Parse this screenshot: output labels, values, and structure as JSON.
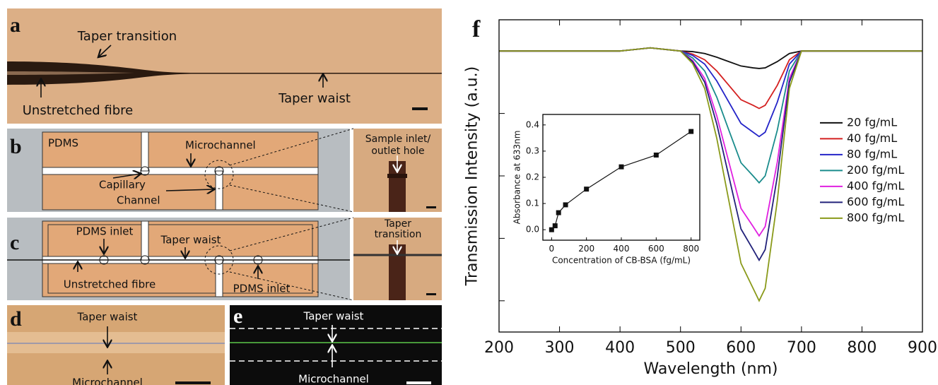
{
  "panels": [
    {
      "letter": "a",
      "labels": [
        "Taper transition",
        "Unstretched fibre",
        "Taper waist"
      ]
    },
    {
      "letter": "b",
      "labels": [
        "PDMS",
        "Microchannel",
        "Capillary",
        "Channel",
        "Sample inlet/",
        "outlet hole"
      ]
    },
    {
      "letter": "c",
      "labels": [
        "PDMS inlet",
        "Taper waist",
        "Unstretched fibre",
        "PDMS inlet",
        "Taper",
        "transition"
      ]
    },
    {
      "letter": "d",
      "labels": [
        "Taper waist",
        "Microchannel"
      ]
    },
    {
      "letter": "e",
      "labels": [
        "Taper waist",
        "Microchannel"
      ]
    }
  ],
  "panel_f_letter": "f",
  "chart_data": [
    {
      "type": "line",
      "x_label": "Wavelength (nm)",
      "y_label": "Transmission Intensity (a.u.)",
      "x": [
        200,
        300,
        400,
        450,
        500,
        520,
        540,
        560,
        580,
        600,
        620,
        630,
        640,
        660,
        680,
        700,
        800,
        900
      ],
      "xlim": [
        200,
        900
      ],
      "xticks": [
        200,
        300,
        400,
        500,
        600,
        700,
        800,
        900
      ],
      "ylim": [
        -0.5,
        4.5
      ],
      "yticks": [
        0,
        1,
        2,
        3,
        4
      ],
      "ytick_labels": false,
      "legend": "right",
      "series": [
        {
          "name": "20 fg/mL",
          "color": "#111111",
          "values": [
            4,
            4,
            4,
            4.05,
            4,
            3.99,
            3.96,
            3.9,
            3.83,
            3.76,
            3.73,
            3.72,
            3.73,
            3.83,
            3.96,
            4,
            4,
            4
          ]
        },
        {
          "name": "40 fg/mL",
          "color": "#d42020",
          "values": [
            4,
            4,
            4,
            4.05,
            4,
            3.95,
            3.86,
            3.68,
            3.45,
            3.22,
            3.13,
            3.08,
            3.13,
            3.45,
            3.86,
            4,
            4,
            4
          ]
        },
        {
          "name": "80 fg/mL",
          "color": "#2424c8",
          "values": [
            4,
            4,
            4,
            4.05,
            4,
            3.93,
            3.79,
            3.52,
            3.18,
            2.84,
            2.7,
            2.63,
            2.7,
            3.18,
            3.79,
            4,
            4,
            4
          ]
        },
        {
          "name": "200 fg/mL",
          "color": "#1a8c8c",
          "values": [
            4,
            4,
            4,
            4.05,
            4,
            3.89,
            3.68,
            3.26,
            2.73,
            2.21,
            2.0,
            1.89,
            2.0,
            2.73,
            3.68,
            4,
            4,
            4
          ]
        },
        {
          "name": "400 fg/mL",
          "color": "#e020e0",
          "values": [
            4,
            4,
            4,
            4.05,
            4,
            3.85,
            3.56,
            2.96,
            2.22,
            1.48,
            1.19,
            1.04,
            1.19,
            2.22,
            3.56,
            4,
            4,
            4
          ]
        },
        {
          "name": "600 fg/mL",
          "color": "#22227a",
          "values": [
            4,
            4,
            4,
            4.05,
            4,
            3.83,
            3.5,
            2.83,
            1.99,
            1.15,
            0.82,
            0.65,
            0.82,
            1.99,
            3.5,
            4,
            4,
            4
          ]
        },
        {
          "name": "800 fg/mL",
          "color": "#8a9a1a",
          "values": [
            4,
            4,
            4,
            4.05,
            4,
            3.8,
            3.4,
            2.6,
            1.6,
            0.6,
            0.2,
            0,
            0.2,
            1.6,
            3.4,
            4,
            4,
            4
          ]
        }
      ]
    },
    {
      "type": "line",
      "marker": "square",
      "color": "#111111",
      "x_label": "Concentration of CB-BSA (fg/mL)",
      "y_label": "Absorbance at 633nm",
      "x": [
        0,
        20,
        40,
        80,
        200,
        400,
        600,
        800
      ],
      "values": [
        0,
        0.015,
        0.065,
        0.095,
        0.155,
        0.24,
        0.285,
        0.375
      ],
      "xlim": [
        -50,
        850
      ],
      "xticks": [
        0,
        200,
        400,
        600,
        800
      ],
      "ylim": [
        -0.04,
        0.44
      ],
      "yticks": [
        {
          "value": 0,
          "label": "0.0"
        },
        0.1,
        0.2,
        0.3,
        0.4
      ],
      "ytick_labels": true
    }
  ]
}
